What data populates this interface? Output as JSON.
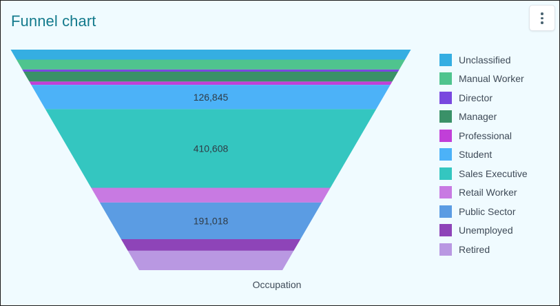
{
  "header": {
    "title": "Funnel chart",
    "menu_icon": "more-vertical-icon"
  },
  "chart_data": {
    "type": "funnel",
    "xlabel": "Occupation",
    "legend_position": "right",
    "segments": [
      {
        "name": "Unclassified",
        "value": 52000,
        "label": "",
        "color": "#35aee2"
      },
      {
        "name": "Manual Worker",
        "value": 52000,
        "label": "",
        "color": "#4fc48e"
      },
      {
        "name": "Director",
        "value": 11000,
        "label": "",
        "color": "#7948df"
      },
      {
        "name": "Manager",
        "value": 52000,
        "label": "",
        "color": "#3a9168"
      },
      {
        "name": "Professional",
        "value": 17000,
        "label": "",
        "color": "#c13fd8"
      },
      {
        "name": "Student",
        "value": 126845,
        "label": "126,845",
        "color": "#4cb2f8"
      },
      {
        "name": "Sales Executive",
        "value": 410608,
        "label": "410,608",
        "color": "#34c6c0"
      },
      {
        "name": "Retail Worker",
        "value": 77000,
        "label": "",
        "color": "#c87ae2"
      },
      {
        "name": "Public Sector",
        "value": 191018,
        "label": "191,018",
        "color": "#5b9ce3"
      },
      {
        "name": "Unemployed",
        "value": 61000,
        "label": "",
        "color": "#8e44b8"
      },
      {
        "name": "Retired",
        "value": 101000,
        "label": "",
        "color": "#b998e2"
      }
    ]
  }
}
